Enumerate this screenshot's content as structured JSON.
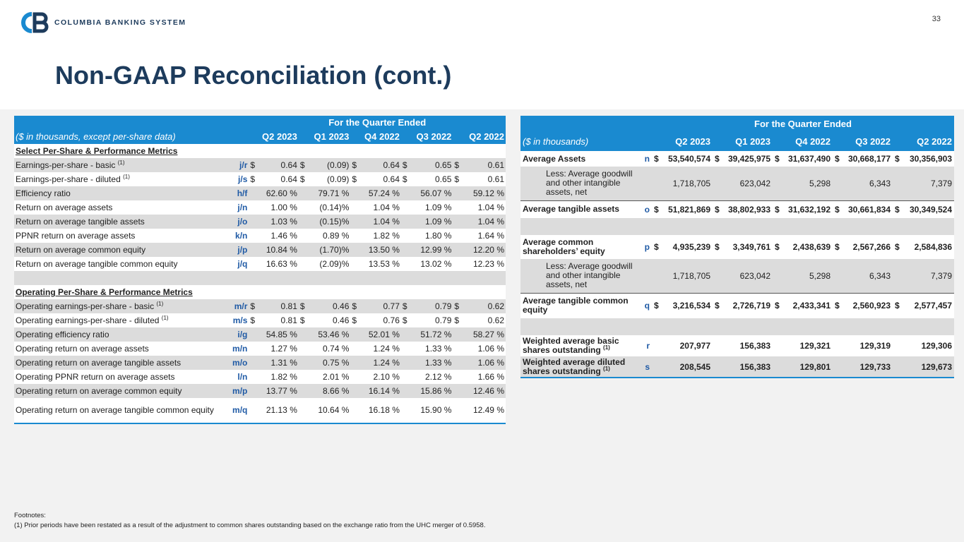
{
  "brand": {
    "name": "COLUMBIA BANKING SYSTEM",
    "primary_color": "#1d3b5c",
    "accent_color": "#1a8ad0"
  },
  "page_number": "33",
  "title": "Non-GAAP Reconciliation (cont.)",
  "left_table": {
    "period_header": "For the Quarter Ended",
    "unit_label": "($ in thousands, except per-share data)",
    "columns": [
      "Q2 2023",
      "Q1 2023",
      "Q4 2022",
      "Q3 2022",
      "Q2 2022"
    ],
    "section1": "Select Per-Share & Performance Metrics",
    "section2": "Operating Per-Share & Performance Metrics",
    "rows1": [
      {
        "label": "Earnings-per-share - basic",
        "note": "(1)",
        "code": "j/r",
        "dollar": true,
        "values": [
          "0.64",
          "(0.09)",
          "0.64",
          "0.65",
          "0.61"
        ]
      },
      {
        "label": "Earnings-per-share - diluted",
        "note": "(1)",
        "code": "j/s",
        "dollar": true,
        "values": [
          "0.64",
          "(0.09)",
          "0.64",
          "0.65",
          "0.61"
        ]
      },
      {
        "label": "Efficiency ratio",
        "note": "",
        "code": "h/f",
        "dollar": false,
        "values": [
          "62.60 %",
          "79.71 %",
          "57.24 %",
          "56.07 %",
          "59.12 %"
        ]
      },
      {
        "label": "Return on average assets",
        "note": "",
        "code": "j/n",
        "dollar": false,
        "values": [
          "1.00 %",
          "(0.14)%",
          "1.04 %",
          "1.09 %",
          "1.04 %"
        ]
      },
      {
        "label": "Return on average tangible assets",
        "note": "",
        "code": "j/o",
        "dollar": false,
        "values": [
          "1.03 %",
          "(0.15)%",
          "1.04 %",
          "1.09 %",
          "1.04 %"
        ]
      },
      {
        "label": "PPNR return on average assets",
        "note": "",
        "code": "k/n",
        "dollar": false,
        "values": [
          "1.46 %",
          "0.89 %",
          "1.82 %",
          "1.80 %",
          "1.64 %"
        ]
      },
      {
        "label": "Return on average common equity",
        "note": "",
        "code": "j/p",
        "dollar": false,
        "values": [
          "10.84 %",
          "(1.70)%",
          "13.50 %",
          "12.99 %",
          "12.20 %"
        ]
      },
      {
        "label": "Return on average tangible common equity",
        "note": "",
        "code": "j/q",
        "dollar": false,
        "values": [
          "16.63 %",
          "(2.09)%",
          "13.53 %",
          "13.02 %",
          "12.23 %"
        ]
      }
    ],
    "rows2": [
      {
        "label": "Operating earnings-per-share - basic",
        "note": "(1)",
        "code": "m/r",
        "dollar": true,
        "values": [
          "0.81",
          "0.46",
          "0.77",
          "0.79",
          "0.62"
        ]
      },
      {
        "label": "Operating earnings-per-share - diluted",
        "note": "(1)",
        "code": "m/s",
        "dollar": true,
        "values": [
          "0.81",
          "0.46",
          "0.76",
          "0.79",
          "0.62"
        ]
      },
      {
        "label": "Operating efficiency ratio",
        "note": "",
        "code": "i/g",
        "dollar": false,
        "values": [
          "54.85 %",
          "53.46 %",
          "52.01 %",
          "51.72 %",
          "58.27 %"
        ]
      },
      {
        "label": "Operating return on average assets",
        "note": "",
        "code": "m/n",
        "dollar": false,
        "values": [
          "1.27 %",
          "0.74 %",
          "1.24 %",
          "1.33 %",
          "1.06 %"
        ]
      },
      {
        "label": "Operating return on average tangible assets",
        "note": "",
        "code": "m/o",
        "dollar": false,
        "values": [
          "1.31 %",
          "0.75 %",
          "1.24 %",
          "1.33 %",
          "1.06 %"
        ]
      },
      {
        "label": "Operating PPNR return on average assets",
        "note": "",
        "code": "l/n",
        "dollar": false,
        "values": [
          "1.82 %",
          "2.01 %",
          "2.10 %",
          "2.12 %",
          "1.66 %"
        ]
      },
      {
        "label": "Operating return on average common equity",
        "note": "",
        "code": "m/p",
        "dollar": false,
        "values": [
          "13.77 %",
          "8.66 %",
          "16.14 %",
          "15.86 %",
          "12.46 %"
        ]
      },
      {
        "label": "Operating return on average tangible common equity",
        "note": "",
        "code": "m/q",
        "dollar": false,
        "values": [
          "21.13 %",
          "10.64 %",
          "16.18 %",
          "15.90 %",
          "12.49 %"
        ]
      }
    ]
  },
  "right_table": {
    "period_header": "For the Quarter Ended",
    "unit_label": "($ in thousands)",
    "columns": [
      "Q2 2023",
      "Q1 2023",
      "Q4 2022",
      "Q3 2022",
      "Q2 2022"
    ],
    "rows": [
      {
        "label": "Average Assets",
        "code": "n",
        "dollar": true,
        "bold": true,
        "indent": false,
        "values": [
          "53,540,574",
          "39,425,975",
          "31,637,490",
          "30,668,177",
          "30,356,903"
        ]
      },
      {
        "label": "Less: Average goodwill and other intangible assets, net",
        "code": "",
        "dollar": false,
        "bold": false,
        "indent": true,
        "values": [
          "1,718,705",
          "623,042",
          "5,298",
          "6,343",
          "7,379"
        ]
      },
      {
        "label": "Average tangible assets",
        "code": "o",
        "dollar": true,
        "bold": true,
        "indent": false,
        "values": [
          "51,821,869",
          "38,802,933",
          "31,632,192",
          "30,661,834",
          "30,349,524"
        ]
      },
      {
        "label": "Average common shareholders’ equity",
        "code": "p",
        "dollar": true,
        "bold": true,
        "indent": false,
        "values": [
          "4,935,239",
          "3,349,761",
          "2,438,639",
          "2,567,266",
          "2,584,836"
        ]
      },
      {
        "label": "Less: Average goodwill and other intangible assets, net",
        "code": "",
        "dollar": false,
        "bold": false,
        "indent": true,
        "values": [
          "1,718,705",
          "623,042",
          "5,298",
          "6,343",
          "7,379"
        ]
      },
      {
        "label": "Average tangible common equity",
        "code": "q",
        "dollar": true,
        "bold": true,
        "indent": false,
        "values": [
          "3,216,534",
          "2,726,719",
          "2,433,341",
          "2,560,923",
          "2,577,457"
        ]
      },
      {
        "label": "Weighted average basic shares outstanding",
        "note": "(1)",
        "code": "r",
        "dollar": false,
        "bold": true,
        "indent": false,
        "values": [
          "207,977",
          "156,383",
          "129,321",
          "129,319",
          "129,306"
        ]
      },
      {
        "label": "Weighted average diluted shares outstanding",
        "note": "(1)",
        "code": "s",
        "dollar": false,
        "bold": true,
        "indent": false,
        "values": [
          "208,545",
          "156,383",
          "129,801",
          "129,733",
          "129,673"
        ]
      }
    ]
  },
  "footnotes": {
    "heading": "Footnotes:",
    "items": [
      "(1) Prior periods have been restated as a result of the adjustment to common shares outstanding based on the exchange ratio from the UHC merger of 0.5958."
    ]
  }
}
